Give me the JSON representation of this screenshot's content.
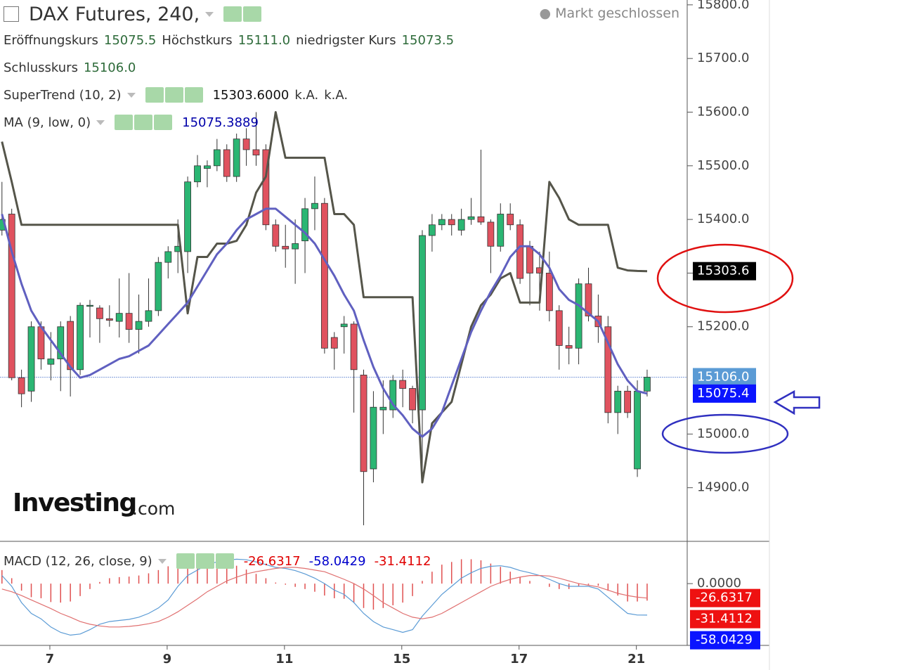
{
  "header": {
    "title": "DAX Futures, 240,",
    "status": "Markt geschlossen",
    "ohlc": [
      {
        "label": "Eröffnungskurs",
        "value": "15075.5"
      },
      {
        "label": "Höchstkurs",
        "value": "15111.0"
      },
      {
        "label": "niedrigster Kurs",
        "value": "15073.5"
      },
      {
        "label": "Schlusskurs",
        "value": "15106.0"
      }
    ],
    "logo": [
      "Investing",
      ".com"
    ]
  },
  "chart_data": [
    {
      "type": "candlestick",
      "up_color": "#2bb673",
      "down_color": "#e0525f",
      "xlim": [
        -0.2,
        70.1
      ],
      "ylim": [
        14800,
        15809
      ],
      "yticks": [
        {
          "value": 14900,
          "label": "14900.0"
        },
        {
          "value": 15000,
          "label": "15000.0"
        },
        {
          "value": 15200,
          "label": "15200.0"
        },
        {
          "value": 15300,
          "label": "15300.0"
        },
        {
          "value": 15400,
          "label": "15400.0"
        },
        {
          "value": 15500,
          "label": "15500.0"
        },
        {
          "value": 15600,
          "label": "15600.0"
        },
        {
          "value": 15700,
          "label": "15700.0"
        },
        {
          "value": 15800,
          "label": "15800.0"
        }
      ],
      "open": [
        15380,
        15410,
        15105,
        15080,
        15200,
        15130,
        15140,
        15210,
        15120,
        15240,
        15235,
        15215,
        15210,
        15225,
        15195,
        15210,
        15230,
        15320,
        15340,
        15340,
        15470,
        15495,
        15500,
        15530,
        15480,
        15550,
        15530,
        15530,
        15390,
        15350,
        15345,
        15360,
        15420,
        15430,
        15180,
        15200,
        15205,
        15110,
        14935,
        15045,
        15045,
        15100,
        15085,
        15045,
        15370,
        15390,
        15400,
        15380,
        15400,
        15405,
        15395,
        15350,
        15410,
        15390,
        15350,
        15310,
        15300,
        15230,
        15165,
        15160,
        15280,
        15220,
        15200,
        15040,
        15080,
        14935,
        15080
      ],
      "high": [
        15470,
        15420,
        15120,
        15210,
        15210,
        15190,
        15210,
        15220,
        15245,
        15250,
        15240,
        15240,
        15290,
        15300,
        15260,
        15290,
        15330,
        15350,
        15400,
        15480,
        15520,
        15510,
        15550,
        15540,
        15560,
        15570,
        15600,
        15540,
        15400,
        15390,
        15400,
        15440,
        15480,
        15440,
        15190,
        15220,
        15210,
        15120,
        15080,
        15100,
        15110,
        15120,
        15090,
        15380,
        15410,
        15410,
        15410,
        15420,
        15440,
        15530,
        15400,
        15430,
        15430,
        15400,
        15360,
        15340,
        15340,
        15240,
        15200,
        15290,
        15310,
        15260,
        15220,
        15090,
        15090,
        15100,
        15120
      ],
      "low": [
        15370,
        15100,
        15050,
        15060,
        15120,
        15100,
        15080,
        15070,
        15110,
        15180,
        15170,
        15200,
        15180,
        15170,
        15150,
        15200,
        15220,
        15290,
        15300,
        15300,
        15460,
        15460,
        15490,
        15470,
        15470,
        15500,
        15500,
        15380,
        15340,
        15310,
        15280,
        15300,
        15380,
        15150,
        15120,
        15150,
        15040,
        14830,
        14910,
        15000,
        15030,
        15050,
        15020,
        14920,
        15340,
        15380,
        15370,
        15370,
        15390,
        15390,
        15300,
        15340,
        15380,
        15280,
        15240,
        15230,
        15210,
        15120,
        15130,
        15130,
        15210,
        15170,
        15020,
        15000,
        15030,
        14920,
        15070
      ],
      "close": [
        15400,
        15105,
        15075,
        15200,
        15140,
        15140,
        15200,
        15120,
        15240,
        15240,
        15215,
        15212,
        15225,
        15195,
        15210,
        15230,
        15320,
        15340,
        15350,
        15470,
        15500,
        15500,
        15530,
        15480,
        15550,
        15530,
        15520,
        15390,
        15350,
        15345,
        15355,
        15420,
        15430,
        15160,
        15160,
        15205,
        15120,
        14930,
        15050,
        15050,
        15100,
        15085,
        15045,
        15370,
        15390,
        15400,
        15390,
        15400,
        15405,
        15395,
        15350,
        15410,
        15390,
        15290,
        15300,
        15300,
        15230,
        15165,
        15160,
        15280,
        15220,
        15200,
        15040,
        15080,
        15040,
        15080,
        15106
      ],
      "series": [
        {
          "name": "SuperTrend (10, 2)",
          "color": "#55554a",
          "readout": [
            "15303.6000",
            "k.A.",
            "k.A."
          ],
          "values": [
            15545,
            15470,
            15390,
            15390,
            15390,
            15390,
            15390,
            15390,
            15390,
            15390,
            15390,
            15390,
            15390,
            15390,
            15390,
            15390,
            15390,
            15390,
            15390,
            15225,
            15330,
            15330,
            15355,
            15355,
            15360,
            15390,
            15450,
            15480,
            15600,
            15515,
            15515,
            15515,
            15515,
            15515,
            15410,
            15410,
            15390,
            15255,
            15255,
            15255,
            15255,
            15255,
            15255,
            14910,
            15020,
            15040,
            15060,
            15130,
            15200,
            15240,
            15260,
            15290,
            15300,
            15245,
            15245,
            15245,
            15470,
            15440,
            15400,
            15390,
            15390,
            15390,
            15390,
            15310,
            15305,
            15304,
            15303.6
          ]
        },
        {
          "name": "MA (9, low, 0)",
          "color": "#6060c0",
          "readout": [
            "15075.3889"
          ],
          "values": [
            15410,
            15340,
            15280,
            15230,
            15200,
            15175,
            15150,
            15125,
            15105,
            15110,
            15120,
            15130,
            15140,
            15145,
            15155,
            15165,
            15185,
            15205,
            15225,
            15245,
            15275,
            15305,
            15335,
            15355,
            15380,
            15400,
            15410,
            15420,
            15420,
            15405,
            15390,
            15375,
            15355,
            15325,
            15295,
            15260,
            15230,
            15175,
            15125,
            15085,
            15055,
            15035,
            15010,
            14995,
            15010,
            15040,
            15090,
            15140,
            15190,
            15230,
            15265,
            15295,
            15330,
            15350,
            15350,
            15335,
            15310,
            15270,
            15250,
            15240,
            15225,
            15210,
            15170,
            15130,
            15100,
            15080,
            15075.3889
          ]
        }
      ],
      "price_labels": [
        {
          "value": 15303.6,
          "label": "15303.6",
          "color": "#000000"
        },
        {
          "value": 15106,
          "label": "15106.0",
          "color": "#5b9bd5"
        },
        {
          "value": 15075.4,
          "label": "15075.4",
          "color": "#0a14ff"
        }
      ],
      "last_line": 15106
    },
    {
      "type": "macd",
      "name": "MACD (12, 26, close, 9)",
      "xlim": [
        -0.2,
        70.1
      ],
      "ylim": [
        -114,
        78
      ],
      "yticks": [
        {
          "value": 0,
          "label": "0.0000"
        }
      ],
      "xticks": [
        {
          "value": 4.9,
          "label": "7"
        },
        {
          "value": 16.9,
          "label": "9"
        },
        {
          "value": 28.9,
          "label": "11"
        },
        {
          "value": 40.9,
          "label": "15"
        },
        {
          "value": 52.9,
          "label": "17"
        },
        {
          "value": 64.9,
          "label": "21"
        }
      ],
      "series": [
        {
          "name": "MACD",
          "color": "#5b9bd5",
          "values": [
            15,
            -5,
            -35,
            -55,
            -65,
            -80,
            -90,
            -95,
            -93,
            -85,
            -75,
            -70,
            -68,
            -66,
            -62,
            -55,
            -45,
            -30,
            -5,
            15,
            25,
            35,
            40,
            43,
            45,
            44,
            40,
            35,
            30,
            28,
            24,
            18,
            10,
            0,
            -12,
            -20,
            -35,
            -55,
            -70,
            -80,
            -85,
            -90,
            -85,
            -60,
            -40,
            -20,
            -5,
            10,
            20,
            28,
            32,
            33,
            30,
            24,
            20,
            15,
            8,
            0,
            -5,
            -5,
            -5,
            -10,
            -25,
            -40,
            -55,
            -58,
            -58.0429
          ]
        },
        {
          "name": "Signal",
          "color": "#e07070",
          "values": [
            -10,
            -15,
            -22,
            -30,
            -38,
            -46,
            -55,
            -62,
            -70,
            -75,
            -78,
            -80,
            -80,
            -79,
            -77,
            -74,
            -70,
            -62,
            -52,
            -40,
            -28,
            -15,
            -5,
            5,
            12,
            18,
            22,
            25,
            28,
            30,
            30,
            28,
            25,
            22,
            15,
            8,
            0,
            -10,
            -22,
            -35,
            -45,
            -55,
            -62,
            -65,
            -62,
            -55,
            -45,
            -35,
            -25,
            -15,
            -5,
            2,
            8,
            12,
            15,
            15,
            14,
            10,
            5,
            0,
            -3,
            -6,
            -12,
            -18,
            -22,
            -25,
            -26.6317
          ]
        }
      ],
      "histogram": {
        "color": "#e05050",
        "values": [
          25,
          10,
          -13,
          -25,
          -27,
          -34,
          -35,
          -33,
          -23,
          -10,
          3,
          10,
          12,
          13,
          15,
          19,
          25,
          32,
          47,
          55,
          53,
          50,
          45,
          38,
          33,
          26,
          18,
          10,
          2,
          -2,
          -6,
          -10,
          -15,
          -22,
          -27,
          -28,
          -35,
          -45,
          -48,
          -45,
          -40,
          -35,
          -23,
          5,
          22,
          35,
          40,
          45,
          45,
          43,
          37,
          31,
          22,
          12,
          5,
          0,
          -6,
          -10,
          -10,
          -5,
          -2,
          -4,
          -13,
          -22,
          -33,
          -33,
          -31.4112
        ]
      },
      "readouts": [
        {
          "value": -26.6317,
          "color": "#e00000"
        },
        {
          "value": -58.0429,
          "color": "#0000cc"
        },
        {
          "value": -31.4112,
          "color": "#e00000"
        }
      ],
      "badges": [
        {
          "value": -26.6317,
          "color": "#ee1111"
        },
        {
          "value": -31.4112,
          "color": "#ee1111"
        },
        {
          "value": -58.0429,
          "color": "#0a14ff"
        }
      ]
    }
  ]
}
